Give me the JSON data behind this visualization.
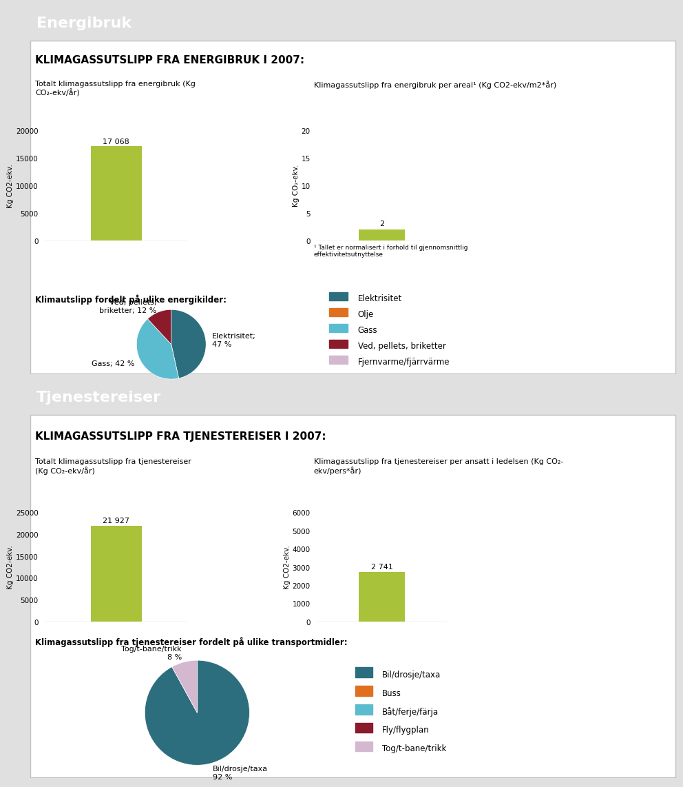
{
  "header_bg_color": "#a8c23a",
  "header_text_color": "#ffffff",
  "outer_bg_color": "#e0e0e0",
  "section1_header": "Energibruk",
  "section1_title": "KLIMAGASSUTSLIPP FRA ENERGIBRUK I 2007:",
  "section1_bar1_label": "Totalt klimagassutslipp fra energibruk (Kg\nCO₂-ekv/år)",
  "section1_bar1_value": 17068,
  "section1_bar1_ylim": [
    0,
    20000
  ],
  "section1_bar1_yticks": [
    0,
    5000,
    10000,
    15000,
    20000
  ],
  "section1_bar1_annotation": "17 068",
  "section1_bar2_label": "Klimagassutslipp fra energibruk per areal¹ (Kg CO2-ekv/m2*år)",
  "section1_bar2_value": 2,
  "section1_bar2_ylim": [
    0,
    20
  ],
  "section1_bar2_yticks": [
    0,
    5,
    10,
    15,
    20
  ],
  "section1_bar2_annotation": "2",
  "section1_bar2_footnote": "¹ Tallet er normalisert i forhold til gjennomsnittlig\neffektivitetsutnyttelse",
  "bar_color": "#a8c23a",
  "section1_pie_title": "Klimautslipp fordelt på ulike energikilder:",
  "section1_pie_values": [
    47,
    0,
    42,
    12,
    0
  ],
  "section1_pie_label_display": [
    "Elektrisitet;\n47 %",
    "",
    "Gass; 42 %",
    "Ved, pellets,\nbriketter; 12 %",
    ""
  ],
  "section1_pie_colors": [
    "#2d6e7e",
    "#e07020",
    "#5bbcd0",
    "#8b1a2a",
    "#d4b8d0"
  ],
  "section1_legend_labels": [
    "Elektrisitet",
    "Olje",
    "Gass",
    "Ved, pellets, briketter",
    "Fjernvarme/fjärrvärme"
  ],
  "section2_header": "Tjenestereiser",
  "section2_title": "KLIMAGASSUTSLIPP FRA TJENESTEREISER I 2007:",
  "section2_bar1_label": "Totalt klimagassutslipp fra tjenestereiser\n(Kg CO₂-ekv/år)",
  "section2_bar1_value": 21927,
  "section2_bar1_ylim": [
    0,
    25000
  ],
  "section2_bar1_yticks": [
    0,
    5000,
    10000,
    15000,
    20000,
    25000
  ],
  "section2_bar1_annotation": "21 927",
  "section2_bar2_label": "Klimagassutslipp fra tjenestereiser per ansatt i ledelsen (Kg CO₂-\nekv/pers*år)",
  "section2_bar2_value": 2741,
  "section2_bar2_ylim": [
    0,
    6000
  ],
  "section2_bar2_yticks": [
    0,
    1000,
    2000,
    3000,
    4000,
    5000,
    6000
  ],
  "section2_bar2_annotation": "2 741",
  "section2_pie_title": "Klimagassutslipp fra tjenestereiser fordelt på ulike transportmidler:",
  "section2_pie_values": [
    92,
    0,
    0,
    0,
    8
  ],
  "section2_pie_label_display": [
    "Bil/drosje/taxa\n92 %",
    "",
    "",
    "",
    "Tog/t-bane/trikk\n8 %"
  ],
  "section2_pie_colors": [
    "#2d6e7e",
    "#e07020",
    "#5bbcd0",
    "#8b1a2a",
    "#d4b8d0"
  ],
  "section2_legend_labels": [
    "Bil/drosje/taxa",
    "Buss",
    "Båt/ferje/färja",
    "Fly/flygplan",
    "Tog/t-bane/trikk"
  ]
}
